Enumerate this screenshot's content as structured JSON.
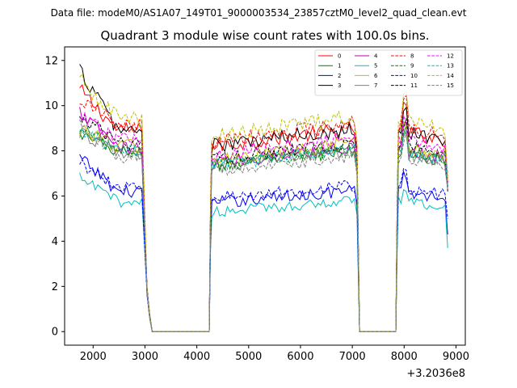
{
  "header": {
    "file_label": "Data file: modeM0/AS1A07_149T01_9000003534_23857cztM0_level2_quad_clean.evt"
  },
  "chart_data": {
    "type": "line",
    "title": "Quadrant 3 module wise count rates with 100.0s bins.",
    "xlabel": "",
    "ylabel": "",
    "x_offset_label": "+3.2036e8",
    "xlim": [
      1450,
      9180
    ],
    "ylim": [
      -0.6,
      12.6
    ],
    "xticks": [
      2000,
      3000,
      4000,
      5000,
      6000,
      7000,
      8000,
      9000
    ],
    "yticks": [
      0,
      2,
      4,
      6,
      8,
      10,
      12
    ],
    "legend_position": "top-right",
    "segments": [
      {
        "start": 1740,
        "end": 2940,
        "rise_to": 1740,
        "drop_to": 3140
      },
      {
        "start": 4290,
        "end": 7040,
        "rise_to": 4240,
        "drop_to": 7140
      },
      {
        "start": 7890,
        "end": 8840,
        "rise_to": 7840,
        "drop_to": null
      }
    ],
    "gap_times": [
      3140,
      3240,
      3340,
      3440,
      3540,
      3640,
      3740,
      3840,
      3940,
      4040,
      4140,
      4240,
      7140,
      7240,
      7340,
      7440,
      7540,
      7640,
      7740,
      7840
    ],
    "series": [
      {
        "name": "0",
        "color": "#ff0000",
        "dash": "solid",
        "base": 8.9,
        "start_val": 10.7,
        "end_val": 6.6,
        "noise": 0.35
      },
      {
        "name": "1",
        "color": "#008000",
        "dash": "solid",
        "base": 7.95,
        "start_val": 8.7,
        "end_val": 6.5,
        "noise": 0.3
      },
      {
        "name": "2",
        "color": "#0000ff",
        "dash": "solid",
        "base": 6.2,
        "start_val": 7.7,
        "end_val": 4.3,
        "noise": 0.28
      },
      {
        "name": "3",
        "color": "#000000",
        "dash": "solid",
        "base": 8.9,
        "start_val": 11.6,
        "end_val": 6.2,
        "noise": 0.35
      },
      {
        "name": "4",
        "color": "#bf00bf",
        "dash": "solid",
        "base": 8.1,
        "start_val": 9.7,
        "end_val": 6.4,
        "noise": 0.3
      },
      {
        "name": "5",
        "color": "#00bfbf",
        "dash": "solid",
        "base": 5.75,
        "start_val": 6.8,
        "end_val": 3.7,
        "noise": 0.25
      },
      {
        "name": "6",
        "color": "#bfbf00",
        "dash": "solid",
        "base": 8.2,
        "start_val": 9.0,
        "end_val": 6.6,
        "noise": 0.35
      },
      {
        "name": "7",
        "color": "#808080",
        "dash": "solid",
        "base": 7.9,
        "start_val": 8.8,
        "end_val": 6.3,
        "noise": 0.28
      },
      {
        "name": "8",
        "color": "#ff0000",
        "dash": "dashed",
        "base": 9.1,
        "start_val": 10.3,
        "end_val": 6.9,
        "noise": 0.35
      },
      {
        "name": "9",
        "color": "#008000",
        "dash": "dashed",
        "base": 8.0,
        "start_val": 9.0,
        "end_val": 6.6,
        "noise": 0.3
      },
      {
        "name": "10",
        "color": "#0000ff",
        "dash": "dashed",
        "base": 6.4,
        "start_val": 7.5,
        "end_val": 5.0,
        "noise": 0.28
      },
      {
        "name": "11",
        "color": "#000000",
        "dash": "dashed",
        "base": 8.3,
        "start_val": 9.6,
        "end_val": 6.4,
        "noise": 0.3
      },
      {
        "name": "12",
        "color": "#ff00ff",
        "dash": "dashed",
        "base": 8.5,
        "start_val": 9.5,
        "end_val": 6.6,
        "noise": 0.32
      },
      {
        "name": "13",
        "color": "#00bfbf",
        "dash": "dashed",
        "base": 8.0,
        "start_val": 8.9,
        "end_val": 6.4,
        "noise": 0.28
      },
      {
        "name": "14",
        "color": "#bfbf00",
        "dash": "dashed",
        "base": 9.4,
        "start_val": 11.2,
        "end_val": 6.8,
        "noise": 0.35
      },
      {
        "name": "15",
        "color": "#808080",
        "dash": "dashed",
        "base": 7.7,
        "start_val": 9.3,
        "end_val": 6.3,
        "noise": 0.28
      }
    ]
  }
}
